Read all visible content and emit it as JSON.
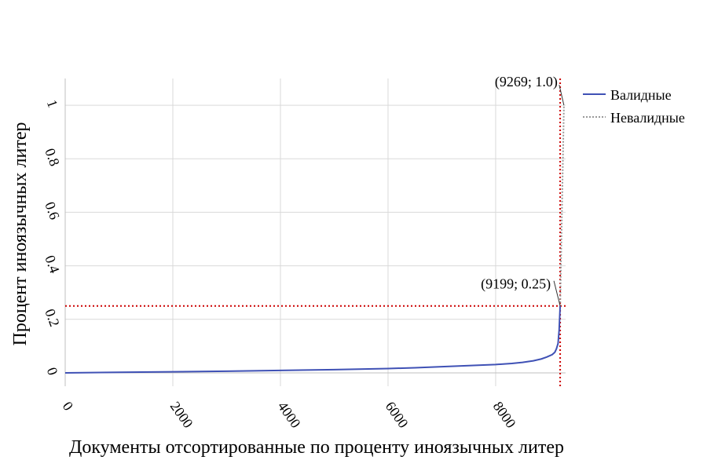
{
  "chart_data": {
    "type": "line",
    "xlabel": "Документы отсортированные по проценту иноязычных литер",
    "ylabel": "Процент иноязычных литер",
    "xlim": [
      0,
      9300
    ],
    "ylim": [
      -0.05,
      1.1
    ],
    "x_ticks": [
      "0",
      "2000",
      "4000",
      "6000",
      "8000"
    ],
    "x_tick_values": [
      0,
      2000,
      4000,
      6000,
      8000
    ],
    "y_ticks": [
      "0",
      "0.2",
      "0.4",
      "0.6",
      "0.8",
      "1"
    ],
    "y_tick_values": [
      0,
      0.2,
      0.4,
      0.6,
      0.8,
      1
    ],
    "grid": true,
    "legend_position": "top-right",
    "colors": {
      "valid": "#3f51b5",
      "invalid": "#999999",
      "threshold": "#cc0000",
      "grid": "#d9d9d9"
    },
    "series": [
      {
        "name": "Валидные",
        "style": "solid",
        "x": [
          0,
          1000,
          2000,
          3000,
          4000,
          5000,
          6000,
          6500,
          7000,
          7500,
          8000,
          8300,
          8500,
          8700,
          8850,
          8950,
          9050,
          9100,
          9130,
          9160,
          9180,
          9199
        ],
        "y": [
          0,
          0.002,
          0.004,
          0.006,
          0.009,
          0.012,
          0.016,
          0.019,
          0.023,
          0.027,
          0.031,
          0.035,
          0.039,
          0.045,
          0.052,
          0.059,
          0.068,
          0.077,
          0.09,
          0.11,
          0.16,
          0.25
        ]
      },
      {
        "name": "Невалидные",
        "style": "dotted",
        "x": [
          9199,
          9269
        ],
        "y": [
          0.25,
          1.0
        ]
      }
    ],
    "threshold_lines": {
      "x": 9199,
      "y": 0.25
    },
    "annotations": [
      {
        "text": "(9269; 1.0)",
        "x": 9269,
        "y": 1.0
      },
      {
        "text": "(9199; 0.25)",
        "x": 9199,
        "y": 0.25
      }
    ]
  }
}
